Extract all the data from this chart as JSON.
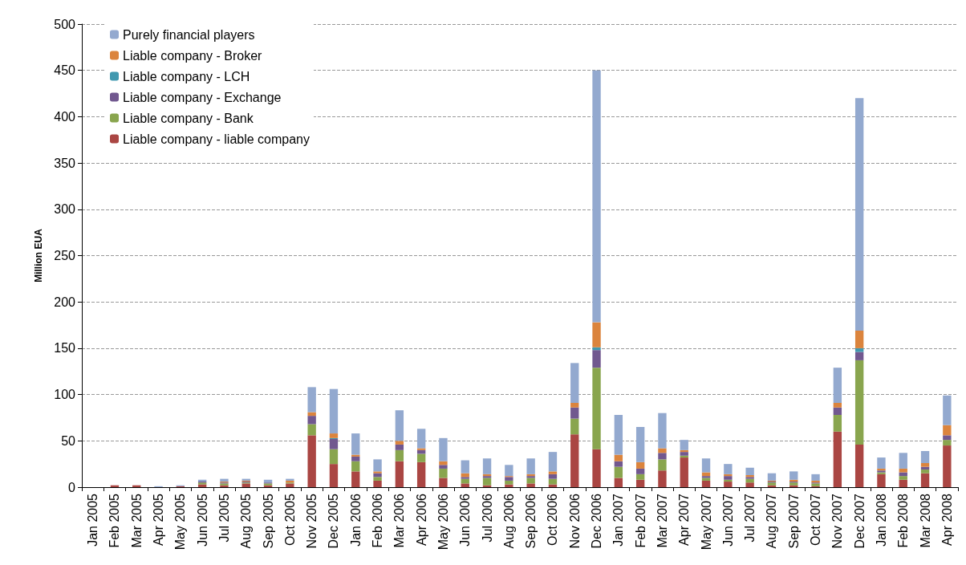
{
  "chart_data": {
    "type": "bar",
    "stacked": true,
    "ylabel": "Million EUA",
    "ylim": [
      0,
      500
    ],
    "yticks": [
      0,
      50,
      100,
      150,
      200,
      250,
      300,
      350,
      400,
      450,
      500
    ],
    "grid": "y",
    "legend": "top left",
    "categories": [
      "Jan 2005",
      "Feb 2005",
      "Mar 2005",
      "Apr 2005",
      "May 2005",
      "Jun 2005",
      "Jul 2005",
      "Aug 2005",
      "Sep 2005",
      "Oct 2005",
      "Nov 2005",
      "Dec 2005",
      "Jan 2006",
      "Feb 2006",
      "Mar 2006",
      "Apr 2006",
      "May 2006",
      "Jun 2006",
      "Jul 2006",
      "Aug 2006",
      "Sep 2006",
      "Oct 2006",
      "Nov 2006",
      "Dec 2006",
      "Jan 2007",
      "Feb 2007",
      "Mar 2007",
      "Apr 2007",
      "May 2007",
      "Jun 2007",
      "Jul 2007",
      "Aug 2007",
      "Sep 2007",
      "Oct 2007",
      "Nov 2007",
      "Dec 2007",
      "Jan 2008",
      "Feb 2008",
      "Mar 2008",
      "Apr 2008"
    ],
    "series": [
      {
        "name": "Liable company - liable company",
        "color": "#aa4643",
        "values": [
          0,
          2,
          2,
          0,
          1,
          3,
          2,
          4,
          2,
          4,
          56,
          25,
          17,
          7,
          28,
          27,
          10,
          4,
          2,
          3,
          4,
          3,
          57,
          41,
          10,
          8,
          18,
          32,
          7,
          6,
          5,
          2,
          2,
          1,
          60,
          46,
          14,
          8,
          15,
          45
        ]
      },
      {
        "name": "Liable company - Bank",
        "color": "#89a54e",
        "values": [
          0,
          0,
          0,
          0,
          0,
          2,
          2,
          1,
          2,
          1,
          12,
          16,
          11,
          4,
          12,
          9,
          10,
          5,
          8,
          4,
          6,
          6,
          17,
          88,
          12,
          6,
          12,
          2,
          3,
          2,
          4,
          3,
          3,
          3,
          18,
          91,
          2,
          4,
          4,
          6
        ]
      },
      {
        "name": "Liable company - Exchange",
        "color": "#71588f",
        "values": [
          0,
          0,
          0,
          0,
          0,
          1,
          1,
          1,
          1,
          0,
          9,
          11,
          5,
          4,
          6,
          4,
          4,
          2,
          2,
          4,
          2,
          5,
          12,
          19,
          6,
          6,
          7,
          4,
          2,
          4,
          2,
          1,
          1,
          1,
          8,
          9,
          2,
          4,
          3,
          5
        ]
      },
      {
        "name": "Liable company - LCH",
        "color": "#4198af",
        "values": [
          0,
          0,
          0,
          0,
          0,
          0,
          0,
          0,
          0,
          0,
          0,
          1,
          0,
          0,
          0,
          0,
          0,
          0,
          0,
          0,
          0,
          0,
          0,
          3,
          0,
          0,
          0,
          0,
          0,
          0,
          0,
          0,
          0,
          0,
          0,
          4,
          0,
          0,
          0,
          0
        ]
      },
      {
        "name": "Liable company - Broker",
        "color": "#db843d",
        "values": [
          0,
          0,
          0,
          0,
          0,
          0,
          1,
          1,
          0,
          2,
          4,
          5,
          2,
          2,
          4,
          2,
          4,
          4,
          2,
          1,
          2,
          3,
          5,
          27,
          7,
          7,
          5,
          2,
          4,
          2,
          2,
          1,
          2,
          2,
          5,
          19,
          2,
          4,
          4,
          11
        ]
      },
      {
        "name": "Purely financial players",
        "color": "#93a9cf",
        "values": [
          0,
          0,
          0,
          1,
          1,
          2,
          3,
          2,
          3,
          2,
          27,
          48,
          23,
          13,
          33,
          21,
          25,
          14,
          17,
          12,
          17,
          21,
          43,
          272,
          43,
          38,
          38,
          11,
          15,
          11,
          8,
          8,
          9,
          7,
          38,
          251,
          12,
          17,
          13,
          32
        ]
      }
    ]
  }
}
